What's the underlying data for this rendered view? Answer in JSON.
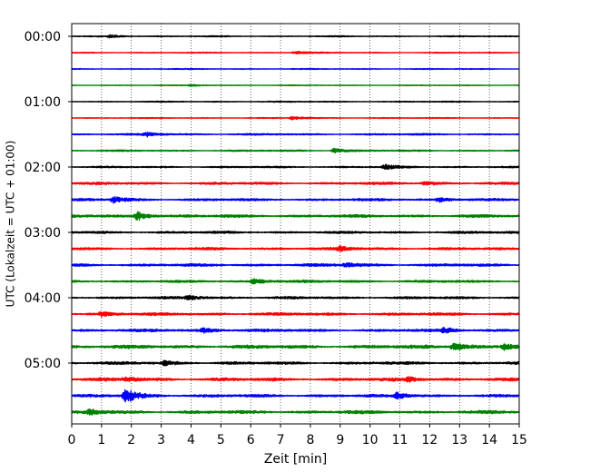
{
  "chart_data": {
    "type": "line",
    "title": "",
    "xlabel": "Zeit  [min]",
    "ylabel": "UTC (Lokalzeit = UTC + 01:00)",
    "xlim": [
      0,
      15
    ],
    "x_ticks": [
      0,
      1,
      2,
      3,
      4,
      5,
      6,
      7,
      8,
      9,
      10,
      11,
      12,
      13,
      14,
      15
    ],
    "y_tick_labels": [
      "00:00",
      "01:00",
      "02:00",
      "03:00",
      "04:00",
      "05:00"
    ],
    "grid": "vertical dotted at each minute",
    "trace_interval_minutes": 15,
    "color_cycle": [
      "#000000",
      "#ff0000",
      "#0000ff",
      "#008000"
    ],
    "traces": [
      {
        "start": "00:00",
        "amplitude": 0.35,
        "events": [
          {
            "t": 1.3,
            "amp": 0.9
          }
        ]
      },
      {
        "start": "00:15",
        "amplitude": 0.3,
        "events": [
          {
            "t": 7.5,
            "amp": 0.9
          }
        ]
      },
      {
        "start": "00:30",
        "amplitude": 0.3,
        "events": []
      },
      {
        "start": "00:45",
        "amplitude": 0.25,
        "events": [
          {
            "t": 4.0,
            "amp": 0.5
          }
        ]
      },
      {
        "start": "01:00",
        "amplitude": 0.35,
        "events": []
      },
      {
        "start": "01:15",
        "amplitude": 0.3,
        "events": [
          {
            "t": 7.4,
            "amp": 1.0
          }
        ]
      },
      {
        "start": "01:30",
        "amplitude": 0.5,
        "events": [
          {
            "t": 2.5,
            "amp": 1.2
          }
        ]
      },
      {
        "start": "01:45",
        "amplitude": 0.45,
        "events": [
          {
            "t": 8.8,
            "amp": 1.4
          }
        ]
      },
      {
        "start": "02:00",
        "amplitude": 0.5,
        "events": [
          {
            "t": 10.5,
            "amp": 1.2
          }
        ]
      },
      {
        "start": "02:15",
        "amplitude": 0.7,
        "events": [
          {
            "t": 11.8,
            "amp": 1.3
          }
        ]
      },
      {
        "start": "02:30",
        "amplitude": 0.7,
        "events": [
          {
            "t": 1.4,
            "amp": 1.8
          },
          {
            "t": 12.3,
            "amp": 1.4
          }
        ]
      },
      {
        "start": "02:45",
        "amplitude": 0.8,
        "events": [
          {
            "t": 2.2,
            "amp": 2.6
          }
        ]
      },
      {
        "start": "03:00",
        "amplitude": 0.7,
        "events": []
      },
      {
        "start": "03:15",
        "amplitude": 0.7,
        "events": [
          {
            "t": 9.0,
            "amp": 1.2
          }
        ]
      },
      {
        "start": "03:30",
        "amplitude": 0.8,
        "events": [
          {
            "t": 9.2,
            "amp": 1.4
          }
        ]
      },
      {
        "start": "03:45",
        "amplitude": 0.7,
        "events": [
          {
            "t": 6.1,
            "amp": 1.9
          }
        ]
      },
      {
        "start": "04:00",
        "amplitude": 0.7,
        "events": [
          {
            "t": 3.9,
            "amp": 1.3
          }
        ]
      },
      {
        "start": "04:15",
        "amplitude": 0.8,
        "events": [
          {
            "t": 1.0,
            "amp": 1.2
          }
        ]
      },
      {
        "start": "04:30",
        "amplitude": 0.8,
        "events": [
          {
            "t": 4.4,
            "amp": 1.5
          },
          {
            "t": 12.5,
            "amp": 1.6
          }
        ]
      },
      {
        "start": "04:45",
        "amplitude": 1.0,
        "events": [
          {
            "t": 12.8,
            "amp": 2.6
          },
          {
            "t": 14.5,
            "amp": 1.8
          }
        ]
      },
      {
        "start": "05:00",
        "amplitude": 0.8,
        "events": [
          {
            "t": 3.1,
            "amp": 1.2
          }
        ]
      },
      {
        "start": "05:15",
        "amplitude": 0.9,
        "events": [
          {
            "t": 1.8,
            "amp": 1.4
          },
          {
            "t": 11.3,
            "amp": 1.3
          }
        ]
      },
      {
        "start": "05:30",
        "amplitude": 0.8,
        "events": [
          {
            "t": 1.8,
            "amp": 4.5
          },
          {
            "t": 10.9,
            "amp": 1.8
          }
        ]
      },
      {
        "start": "05:45",
        "amplitude": 0.9,
        "events": [
          {
            "t": 0.6,
            "amp": 1.5
          }
        ]
      }
    ]
  }
}
